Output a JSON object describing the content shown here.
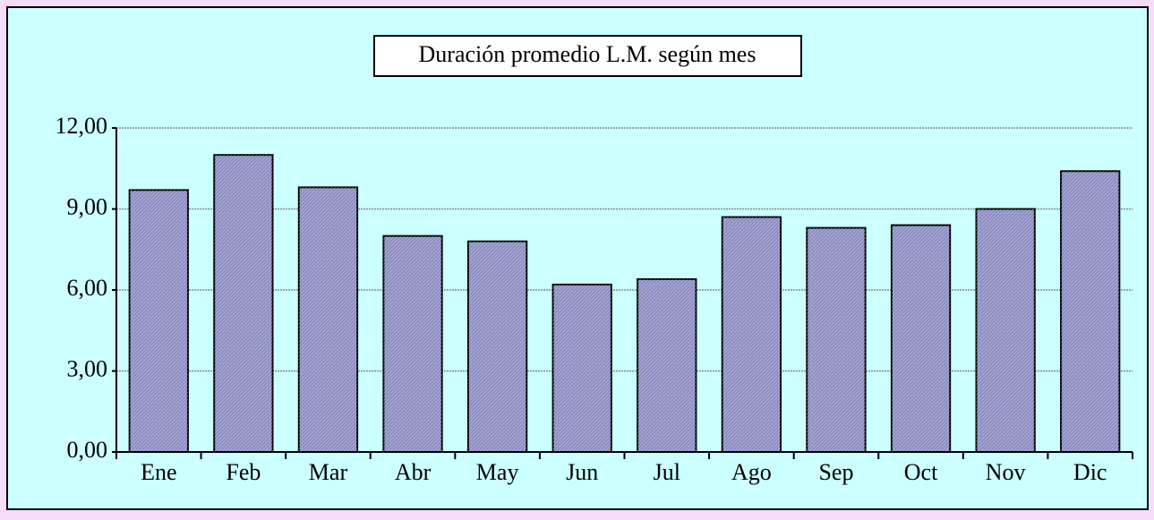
{
  "chart_data": {
    "type": "bar",
    "title": "Duración promedio L.M. según mes",
    "categories": [
      "Ene",
      "Feb",
      "Mar",
      "Abr",
      "May",
      "Jun",
      "Jul",
      "Ago",
      "Sep",
      "Oct",
      "Nov",
      "Dic"
    ],
    "values": [
      9.7,
      11.0,
      9.8,
      8.0,
      7.8,
      6.2,
      6.4,
      8.7,
      8.3,
      8.4,
      9.0,
      10.4
    ],
    "color": "#8a8ac2",
    "ylim": [
      0,
      12
    ],
    "yticks": [
      {
        "value": 0,
        "label": "0,00"
      },
      {
        "value": 3,
        "label": "3,00"
      },
      {
        "value": 6,
        "label": "6,00"
      },
      {
        "value": 9,
        "label": "9,00"
      },
      {
        "value": 12,
        "label": "12,00"
      }
    ],
    "grid": true
  }
}
